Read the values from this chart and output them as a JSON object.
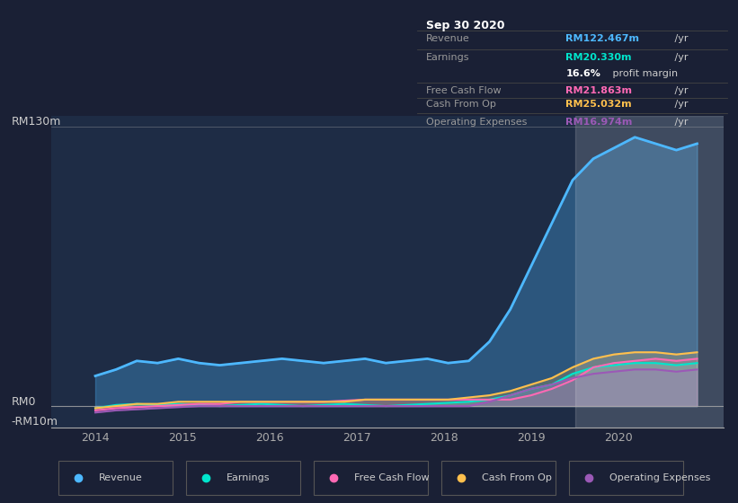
{
  "bg_color": "#1a2035",
  "chart_bg": "#1e2c45",
  "ylabel_top": "RM130m",
  "ylabel_zero": "RM0",
  "ylabel_neg": "-RM10m",
  "ylim": [
    -10,
    135
  ],
  "xlim_start": 2013.5,
  "xlim_end": 2021.2,
  "xticks": [
    2014,
    2015,
    2016,
    2017,
    2018,
    2019,
    2020
  ],
  "colors": {
    "revenue": "#4db8ff",
    "earnings": "#00e5cc",
    "free_cash_flow": "#ff69b4",
    "cash_from_op": "#ffc04d",
    "operating_expenses": "#9b59b6"
  },
  "info_box": {
    "title": "Sep 30 2020",
    "revenue_label": "Revenue",
    "revenue_value": "RM122.467m",
    "earnings_label": "Earnings",
    "earnings_value": "RM20.330m",
    "profit_margin": "16.6%",
    "profit_margin_text": " profit margin",
    "fcf_label": "Free Cash Flow",
    "fcf_value": "RM21.863m",
    "cfo_label": "Cash From Op",
    "cfo_value": "RM25.032m",
    "opex_label": "Operating Expenses",
    "opex_value": "RM16.974m",
    "per_yr": " /yr"
  },
  "revenue": [
    14,
    17,
    21,
    20,
    22,
    20,
    19,
    20,
    21,
    22,
    21,
    20,
    21,
    22,
    20,
    21,
    22,
    20,
    21,
    30,
    45,
    65,
    85,
    105,
    115,
    120,
    125,
    122,
    119,
    122
  ],
  "earnings": [
    -1,
    0.5,
    1,
    0.5,
    1,
    0.5,
    0,
    0.5,
    1,
    0.5,
    0,
    0.5,
    1,
    0.5,
    0,
    0.5,
    1,
    1.5,
    2,
    3,
    5,
    8,
    10,
    15,
    18,
    19,
    20,
    20,
    19,
    20
  ],
  "free_cash_flow": [
    -2,
    -1,
    -0.5,
    0,
    0.5,
    1,
    1,
    2,
    2,
    2,
    2,
    2,
    2.5,
    3,
    3,
    3,
    3,
    3,
    3,
    3,
    3,
    5,
    8,
    12,
    18,
    20,
    21,
    22,
    21,
    22
  ],
  "cash_from_op": [
    -1,
    0,
    1,
    1,
    2,
    2,
    2,
    2,
    2,
    2,
    2,
    2,
    2,
    3,
    3,
    3,
    3,
    3,
    4,
    5,
    7,
    10,
    13,
    18,
    22,
    24,
    25,
    25,
    24,
    25
  ],
  "operating_expenses": [
    -3,
    -2,
    -1.5,
    -1,
    -0.5,
    0,
    0,
    0,
    0,
    0,
    0,
    0,
    0,
    0,
    0,
    0,
    0,
    0,
    0,
    2,
    5,
    8,
    10,
    13,
    15,
    16,
    17,
    17,
    16,
    17
  ],
  "n_points": 30,
  "start_year": 2014.0,
  "end_year": 2020.9,
  "highlight_start": 2019.5
}
